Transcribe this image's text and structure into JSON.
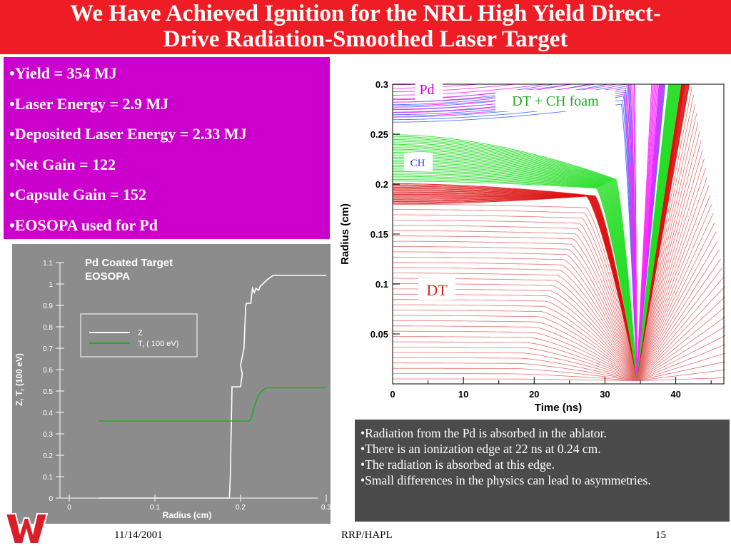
{
  "title": {
    "line1": "We Have Achieved Ignition for the NRL High Yield Direct-",
    "line2": "Drive Radiation-Smoothed Laser Target"
  },
  "bullets": [
    "•Yield = 354 MJ",
    "•Laser Energy = 2.9 MJ",
    "•Deposited Laser Energy = 2.33 MJ",
    "•Net Gain = 122",
    "•Capsule Gain = 152",
    "•EOSOPA used for Pd"
  ],
  "notes": [
    "•Radiation from the Pd is absorbed in the ablator.",
    "•There is an ionization edge at 22 ns at 0.24 cm.",
    "•The radiation is absorbed at this edge.",
    "•Small differences in the physics can lead to asymmetries."
  ],
  "footer": {
    "date": "11/14/2001",
    "center": "RRP/HAPL",
    "page": "15"
  },
  "colors": {
    "title_bg": "#ee1c25",
    "bullet_bg": "#cc00cc",
    "note_bg": "#4b4b4b",
    "left_chart_bg": "#8c8c8c"
  },
  "chart_data": [
    {
      "type": "line",
      "title": "Pd Coated Target",
      "subtitle": "EOSOPA",
      "xlabel": "Radius (cm)",
      "ylabel": "Z, T",
      "ylabel_sub": "r",
      "ylabel_tail": " (100 eV)",
      "xlim": [
        0,
        0.3
      ],
      "ylim": [
        0,
        1.1
      ],
      "x_ticks": [
        "0",
        "0.1",
        "0.2",
        "0.3"
      ],
      "y_ticks": [
        "0",
        "0.1",
        "0.2",
        "0.3",
        "0.4",
        "0.5",
        "0.6",
        "0.7",
        "0.8",
        "0.9",
        "1",
        "1.1"
      ],
      "legend": {
        "placement": "upper-left",
        "z_label": "Z",
        "tr_label": "T",
        "tr_sub": "r",
        "tr_tail": " ( 100 eV)"
      },
      "series": [
        {
          "name": "Z",
          "color": "#ffffff",
          "x": [
            0.035,
            0.187,
            0.188,
            0.189,
            0.19,
            0.2,
            0.201,
            0.202,
            0.2,
            0.204,
            0.206,
            0.207,
            0.212,
            0.213,
            0.214,
            0.216,
            0.218,
            0.221,
            0.223,
            0.226,
            0.231,
            0.238,
            0.3
          ],
          "y": [
            0.0,
            0.0,
            0.1,
            0.3,
            0.52,
            0.52,
            0.55,
            0.58,
            0.62,
            0.7,
            0.9,
            0.91,
            0.91,
            0.95,
            0.98,
            0.96,
            0.98,
            0.97,
            0.99,
            1.0,
            1.02,
            1.04,
            1.04
          ]
        },
        {
          "name": "T",
          "color": "#22aa22",
          "x": [
            0.035,
            0.21,
            0.213,
            0.217,
            0.221,
            0.225,
            0.23,
            0.3
          ],
          "y": [
            0.36,
            0.36,
            0.38,
            0.44,
            0.48,
            0.5,
            0.515,
            0.515
          ]
        }
      ]
    },
    {
      "type": "line",
      "xlabel": "Time (ns)",
      "ylabel": "Radius (cm)",
      "xlim": [
        0,
        47
      ],
      "ylim": [
        0,
        0.3
      ],
      "x_ticks": [
        "0",
        "10",
        "20",
        "30",
        "40"
      ],
      "y_ticks": [
        "0.05",
        "0.1",
        "0.15",
        "0.2",
        "0.25",
        "0.3"
      ],
      "region_labels": {
        "pd": "Pd",
        "dt_ch_foam": "DT + CH foam",
        "ch": "CH",
        "dt": "DT"
      },
      "implosion": {
        "stagnation_time": 34.5,
        "stagnation_radius": 0.005,
        "shock_time": 28,
        "fuel_radius": 0.19,
        "fuel_inner_radius": 0.18,
        "ch_radius": 0.23
      },
      "pd_color": "#ff22ff",
      "ch_color": "#4466ff",
      "foam_color": "#22dd22",
      "dt_color": "#dd1111",
      "dt_line_color": "#e06060"
    }
  ]
}
